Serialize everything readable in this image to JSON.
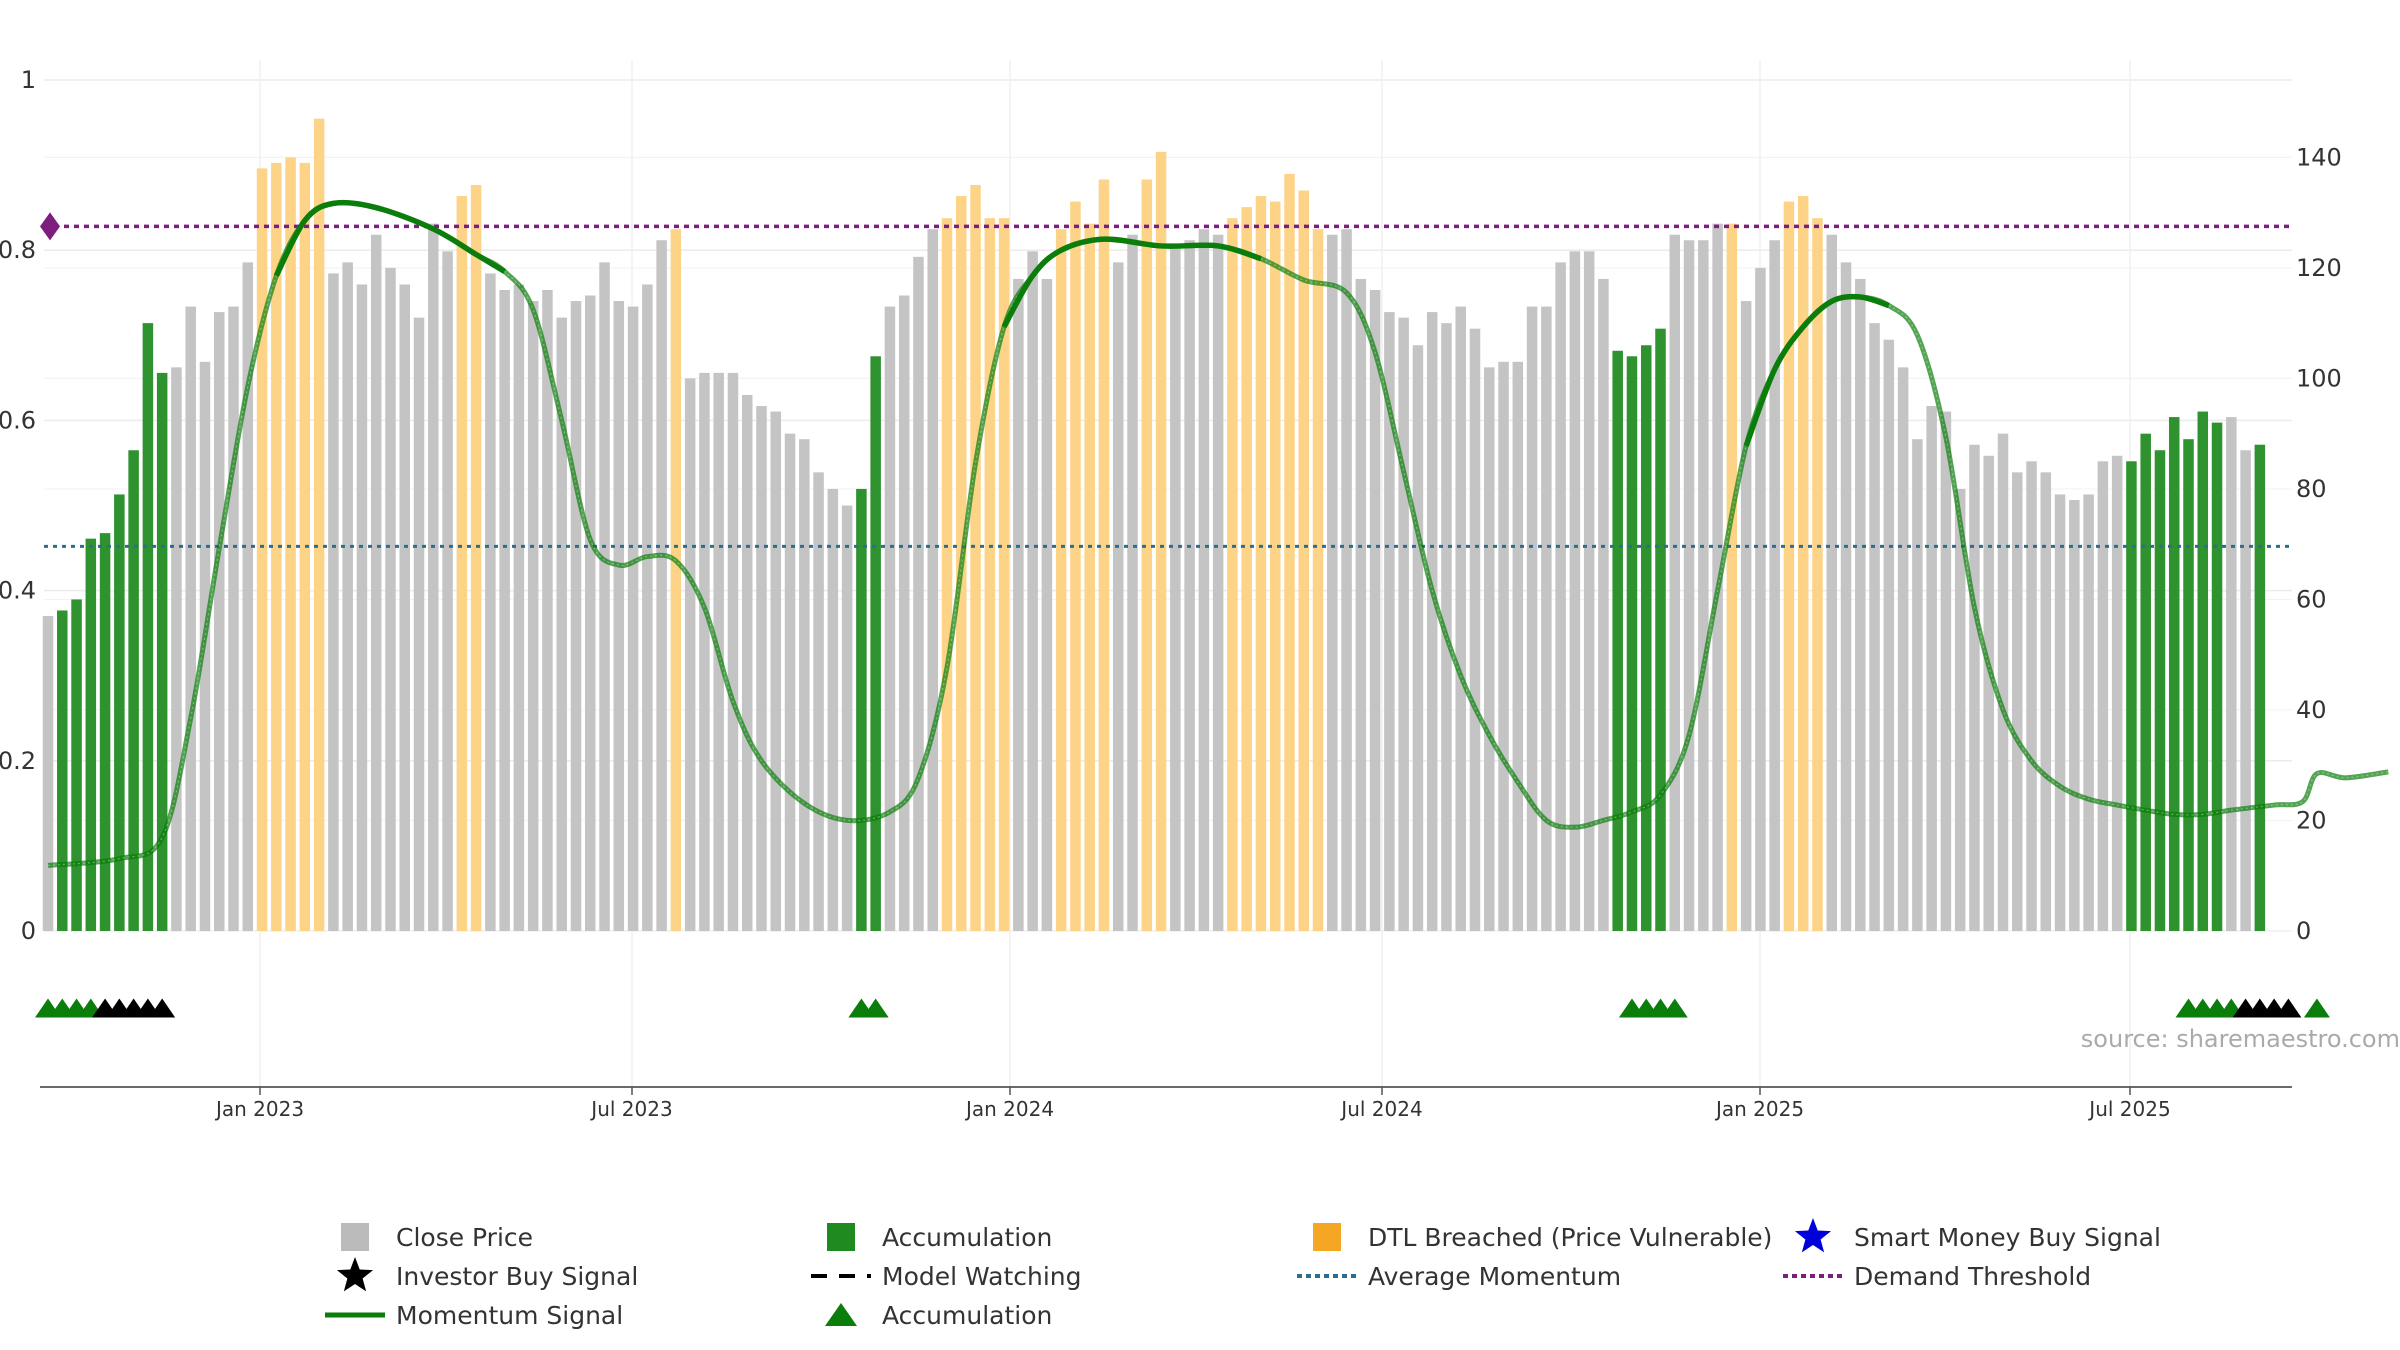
{
  "chart_data": {
    "type": "bar",
    "x_tick_labels": [
      "Jan 2023",
      "Jul 2023",
      "Jan 2024",
      "Jul 2024",
      "Jan 2025",
      "Jul 2025"
    ],
    "left_axis": {
      "ylim": [
        0,
        1
      ],
      "ticks": [
        "0",
        "0.2",
        "0.4",
        "0.6",
        "0.8",
        "1"
      ]
    },
    "right_axis": {
      "ylim": [
        0,
        154
      ],
      "ticks": [
        "0",
        "20",
        "40",
        "60",
        "80",
        "100",
        "120",
        "140"
      ]
    },
    "price_bars": [
      {
        "v": 57,
        "c": "gray"
      },
      {
        "v": 58,
        "c": "green"
      },
      {
        "v": 60,
        "c": "green"
      },
      {
        "v": 71,
        "c": "green"
      },
      {
        "v": 72,
        "c": "green"
      },
      {
        "v": 79,
        "c": "green"
      },
      {
        "v": 87,
        "c": "green"
      },
      {
        "v": 110,
        "c": "green"
      },
      {
        "v": 101,
        "c": "green"
      },
      {
        "v": 102,
        "c": "gray"
      },
      {
        "v": 113,
        "c": "gray"
      },
      {
        "v": 103,
        "c": "gray"
      },
      {
        "v": 112,
        "c": "gray"
      },
      {
        "v": 113,
        "c": "gray"
      },
      {
        "v": 121,
        "c": "gray"
      },
      {
        "v": 138,
        "c": "orange"
      },
      {
        "v": 139,
        "c": "orange"
      },
      {
        "v": 140,
        "c": "orange"
      },
      {
        "v": 139,
        "c": "orange"
      },
      {
        "v": 147,
        "c": "orange"
      },
      {
        "v": 119,
        "c": "gray"
      },
      {
        "v": 121,
        "c": "gray"
      },
      {
        "v": 117,
        "c": "gray"
      },
      {
        "v": 126,
        "c": "gray"
      },
      {
        "v": 120,
        "c": "gray"
      },
      {
        "v": 117,
        "c": "gray"
      },
      {
        "v": 111,
        "c": "gray"
      },
      {
        "v": 128,
        "c": "gray"
      },
      {
        "v": 123,
        "c": "gray"
      },
      {
        "v": 133,
        "c": "orange"
      },
      {
        "v": 135,
        "c": "orange"
      },
      {
        "v": 119,
        "c": "gray"
      },
      {
        "v": 116,
        "c": "gray"
      },
      {
        "v": 117,
        "c": "gray"
      },
      {
        "v": 114,
        "c": "gray"
      },
      {
        "v": 116,
        "c": "gray"
      },
      {
        "v": 111,
        "c": "gray"
      },
      {
        "v": 114,
        "c": "gray"
      },
      {
        "v": 115,
        "c": "gray"
      },
      {
        "v": 121,
        "c": "gray"
      },
      {
        "v": 114,
        "c": "gray"
      },
      {
        "v": 113,
        "c": "gray"
      },
      {
        "v": 117,
        "c": "gray"
      },
      {
        "v": 125,
        "c": "gray"
      },
      {
        "v": 127,
        "c": "orange"
      },
      {
        "v": 100,
        "c": "gray"
      },
      {
        "v": 101,
        "c": "gray"
      },
      {
        "v": 101,
        "c": "gray"
      },
      {
        "v": 101,
        "c": "gray"
      },
      {
        "v": 97,
        "c": "gray"
      },
      {
        "v": 95,
        "c": "gray"
      },
      {
        "v": 94,
        "c": "gray"
      },
      {
        "v": 90,
        "c": "gray"
      },
      {
        "v": 89,
        "c": "gray"
      },
      {
        "v": 83,
        "c": "gray"
      },
      {
        "v": 80,
        "c": "gray"
      },
      {
        "v": 77,
        "c": "gray"
      },
      {
        "v": 80,
        "c": "green"
      },
      {
        "v": 104,
        "c": "green"
      },
      {
        "v": 113,
        "c": "gray"
      },
      {
        "v": 115,
        "c": "gray"
      },
      {
        "v": 122,
        "c": "gray"
      },
      {
        "v": 127,
        "c": "gray"
      },
      {
        "v": 129,
        "c": "orange"
      },
      {
        "v": 133,
        "c": "orange"
      },
      {
        "v": 135,
        "c": "orange"
      },
      {
        "v": 129,
        "c": "orange"
      },
      {
        "v": 129,
        "c": "orange"
      },
      {
        "v": 118,
        "c": "gray"
      },
      {
        "v": 123,
        "c": "gray"
      },
      {
        "v": 118,
        "c": "gray"
      },
      {
        "v": 127,
        "c": "orange"
      },
      {
        "v": 132,
        "c": "orange"
      },
      {
        "v": 128,
        "c": "orange"
      },
      {
        "v": 136,
        "c": "orange"
      },
      {
        "v": 121,
        "c": "gray"
      },
      {
        "v": 126,
        "c": "gray"
      },
      {
        "v": 136,
        "c": "orange"
      },
      {
        "v": 141,
        "c": "orange"
      },
      {
        "v": 124,
        "c": "gray"
      },
      {
        "v": 125,
        "c": "gray"
      },
      {
        "v": 127,
        "c": "gray"
      },
      {
        "v": 126,
        "c": "gray"
      },
      {
        "v": 129,
        "c": "orange"
      },
      {
        "v": 131,
        "c": "orange"
      },
      {
        "v": 133,
        "c": "orange"
      },
      {
        "v": 132,
        "c": "orange"
      },
      {
        "v": 137,
        "c": "orange"
      },
      {
        "v": 134,
        "c": "orange"
      },
      {
        "v": 127,
        "c": "orange"
      },
      {
        "v": 126,
        "c": "gray"
      },
      {
        "v": 127,
        "c": "gray"
      },
      {
        "v": 118,
        "c": "gray"
      },
      {
        "v": 116,
        "c": "gray"
      },
      {
        "v": 112,
        "c": "gray"
      },
      {
        "v": 111,
        "c": "gray"
      },
      {
        "v": 106,
        "c": "gray"
      },
      {
        "v": 112,
        "c": "gray"
      },
      {
        "v": 110,
        "c": "gray"
      },
      {
        "v": 113,
        "c": "gray"
      },
      {
        "v": 109,
        "c": "gray"
      },
      {
        "v": 102,
        "c": "gray"
      },
      {
        "v": 103,
        "c": "gray"
      },
      {
        "v": 103,
        "c": "gray"
      },
      {
        "v": 113,
        "c": "gray"
      },
      {
        "v": 113,
        "c": "gray"
      },
      {
        "v": 121,
        "c": "gray"
      },
      {
        "v": 123,
        "c": "gray"
      },
      {
        "v": 123,
        "c": "gray"
      },
      {
        "v": 118,
        "c": "gray"
      },
      {
        "v": 105,
        "c": "green"
      },
      {
        "v": 104,
        "c": "green"
      },
      {
        "v": 106,
        "c": "green"
      },
      {
        "v": 109,
        "c": "green"
      },
      {
        "v": 126,
        "c": "gray"
      },
      {
        "v": 125,
        "c": "gray"
      },
      {
        "v": 125,
        "c": "gray"
      },
      {
        "v": 128,
        "c": "gray"
      },
      {
        "v": 128,
        "c": "orange"
      },
      {
        "v": 114,
        "c": "gray"
      },
      {
        "v": 120,
        "c": "gray"
      },
      {
        "v": 125,
        "c": "gray"
      },
      {
        "v": 132,
        "c": "orange"
      },
      {
        "v": 133,
        "c": "orange"
      },
      {
        "v": 129,
        "c": "orange"
      },
      {
        "v": 126,
        "c": "gray"
      },
      {
        "v": 121,
        "c": "gray"
      },
      {
        "v": 118,
        "c": "gray"
      },
      {
        "v": 110,
        "c": "gray"
      },
      {
        "v": 107,
        "c": "gray"
      },
      {
        "v": 102,
        "c": "gray"
      },
      {
        "v": 89,
        "c": "gray"
      },
      {
        "v": 95,
        "c": "gray"
      },
      {
        "v": 94,
        "c": "gray"
      },
      {
        "v": 80,
        "c": "gray"
      },
      {
        "v": 88,
        "c": "gray"
      },
      {
        "v": 86,
        "c": "gray"
      },
      {
        "v": 90,
        "c": "gray"
      },
      {
        "v": 83,
        "c": "gray"
      },
      {
        "v": 85,
        "c": "gray"
      },
      {
        "v": 83,
        "c": "gray"
      },
      {
        "v": 79,
        "c": "gray"
      },
      {
        "v": 78,
        "c": "gray"
      },
      {
        "v": 79,
        "c": "gray"
      },
      {
        "v": 85,
        "c": "gray"
      },
      {
        "v": 86,
        "c": "gray"
      },
      {
        "v": 85,
        "c": "green"
      },
      {
        "v": 90,
        "c": "green"
      },
      {
        "v": 87,
        "c": "green"
      },
      {
        "v": 93,
        "c": "green"
      },
      {
        "v": 89,
        "c": "green"
      },
      {
        "v": 94,
        "c": "green"
      },
      {
        "v": 92,
        "c": "green"
      },
      {
        "v": 93,
        "c": "gray"
      },
      {
        "v": 87,
        "c": "gray"
      },
      {
        "v": 88,
        "c": "green"
      }
    ],
    "momentum_series": [
      [
        0,
        0.077
      ],
      [
        5,
        0.085
      ],
      [
        8,
        0.11
      ],
      [
        10,
        0.25
      ],
      [
        12,
        0.45
      ],
      [
        14,
        0.64
      ],
      [
        16,
        0.77
      ],
      [
        18,
        0.835
      ],
      [
        20,
        0.855
      ],
      [
        23,
        0.85
      ],
      [
        27,
        0.825
      ],
      [
        30,
        0.795
      ],
      [
        32,
        0.775
      ],
      [
        34,
        0.73
      ],
      [
        36,
        0.6
      ],
      [
        38,
        0.46
      ],
      [
        40,
        0.43
      ],
      [
        42,
        0.44
      ],
      [
        44,
        0.435
      ],
      [
        46,
        0.38
      ],
      [
        48,
        0.27
      ],
      [
        50,
        0.2
      ],
      [
        53,
        0.15
      ],
      [
        56,
        0.13
      ],
      [
        59,
        0.14
      ],
      [
        61,
        0.18
      ],
      [
        63,
        0.31
      ],
      [
        65,
        0.55
      ],
      [
        67,
        0.71
      ],
      [
        69,
        0.77
      ],
      [
        71,
        0.8
      ],
      [
        74,
        0.813
      ],
      [
        78,
        0.805
      ],
      [
        82,
        0.805
      ],
      [
        85,
        0.79
      ],
      [
        88,
        0.765
      ],
      [
        91,
        0.75
      ],
      [
        93,
        0.68
      ],
      [
        95,
        0.54
      ],
      [
        97,
        0.4
      ],
      [
        99,
        0.3
      ],
      [
        101,
        0.23
      ],
      [
        103,
        0.175
      ],
      [
        105,
        0.13
      ],
      [
        107,
        0.122
      ],
      [
        109,
        0.13
      ],
      [
        111,
        0.14
      ],
      [
        113,
        0.16
      ],
      [
        115,
        0.23
      ],
      [
        117,
        0.4
      ],
      [
        119,
        0.57
      ],
      [
        121,
        0.66
      ],
      [
        123,
        0.71
      ],
      [
        125,
        0.74
      ],
      [
        127,
        0.745
      ],
      [
        129,
        0.735
      ],
      [
        131,
        0.7
      ],
      [
        133,
        0.58
      ],
      [
        135,
        0.38
      ],
      [
        137,
        0.26
      ],
      [
        139,
        0.2
      ],
      [
        141,
        0.17
      ],
      [
        143,
        0.155
      ],
      [
        145,
        0.148
      ],
      [
        147,
        0.142
      ],
      [
        149,
        0.137
      ],
      [
        151,
        0.137
      ],
      [
        153,
        0.142
      ],
      [
        156,
        0.148
      ],
      [
        158,
        0.152
      ],
      [
        159,
        0.185
      ],
      [
        161,
        0.18
      ],
      [
        164,
        0.187
      ]
    ],
    "momentum_highlight_ranges": [
      [
        16,
        32
      ],
      [
        66,
        86
      ],
      [
        118,
        130
      ]
    ],
    "average_momentum": 0.452,
    "demand_threshold": 0.828,
    "demand_marker": "purple-diamond",
    "signals": [
      {
        "i": 0,
        "t": "accumulation"
      },
      {
        "i": 1,
        "t": "accumulation"
      },
      {
        "i": 2,
        "t": "accumulation"
      },
      {
        "i": 3,
        "t": "accumulation"
      },
      {
        "i": 4,
        "t": "investor"
      },
      {
        "i": 5,
        "t": "investor"
      },
      {
        "i": 6,
        "t": "investor"
      },
      {
        "i": 7,
        "t": "investor"
      },
      {
        "i": 8,
        "t": "investor"
      },
      {
        "i": 57,
        "t": "accumulation"
      },
      {
        "i": 58,
        "t": "accumulation"
      },
      {
        "i": 111,
        "t": "accumulation"
      },
      {
        "i": 112,
        "t": "accumulation"
      },
      {
        "i": 113,
        "t": "accumulation"
      },
      {
        "i": 114,
        "t": "accumulation"
      },
      {
        "i": 150,
        "t": "accumulation"
      },
      {
        "i": 151,
        "t": "accumulation"
      },
      {
        "i": 152,
        "t": "accumulation"
      },
      {
        "i": 153,
        "t": "accumulation"
      },
      {
        "i": 154,
        "t": "investor"
      },
      {
        "i": 155,
        "t": "investor"
      },
      {
        "i": 156,
        "t": "investor"
      },
      {
        "i": 157,
        "t": "investor"
      },
      {
        "i": 159,
        "t": "accumulation"
      }
    ],
    "source_text": "source: sharemaestro.com",
    "legend": [
      {
        "label": "Close Price",
        "symbol": "square",
        "color": "#bbbbbb"
      },
      {
        "label": "Accumulation",
        "symbol": "square",
        "color": "#1f8a1f"
      },
      {
        "label": "DTL Breached (Price Vulnerable)",
        "symbol": "square",
        "color": "#f5a623"
      },
      {
        "label": "Smart Money Buy Signal",
        "symbol": "star",
        "color": "#0000dd"
      },
      {
        "label": "Investor Buy Signal",
        "symbol": "star",
        "color": "#000000"
      },
      {
        "label": "Model Watching",
        "symbol": "dash",
        "color": "#000000"
      },
      {
        "label": "Average Momentum",
        "symbol": "dotted",
        "color": "#2c6e8f"
      },
      {
        "label": "Demand Threshold",
        "symbol": "dotted",
        "color": "#7d1d7d"
      },
      {
        "label": "Momentum Signal",
        "symbol": "line",
        "color": "#0a7d0a"
      },
      {
        "label": "Accumulation",
        "symbol": "triangle",
        "color": "#0a7d0a"
      }
    ],
    "colors": {
      "gray": "#c4c4c4",
      "green": "#2e922e",
      "orange": "#fdd387",
      "momentum": "#0a7d0a",
      "average": "#2c6e8f",
      "threshold": "#7d1d7d",
      "grid": "#ebebeb"
    }
  }
}
